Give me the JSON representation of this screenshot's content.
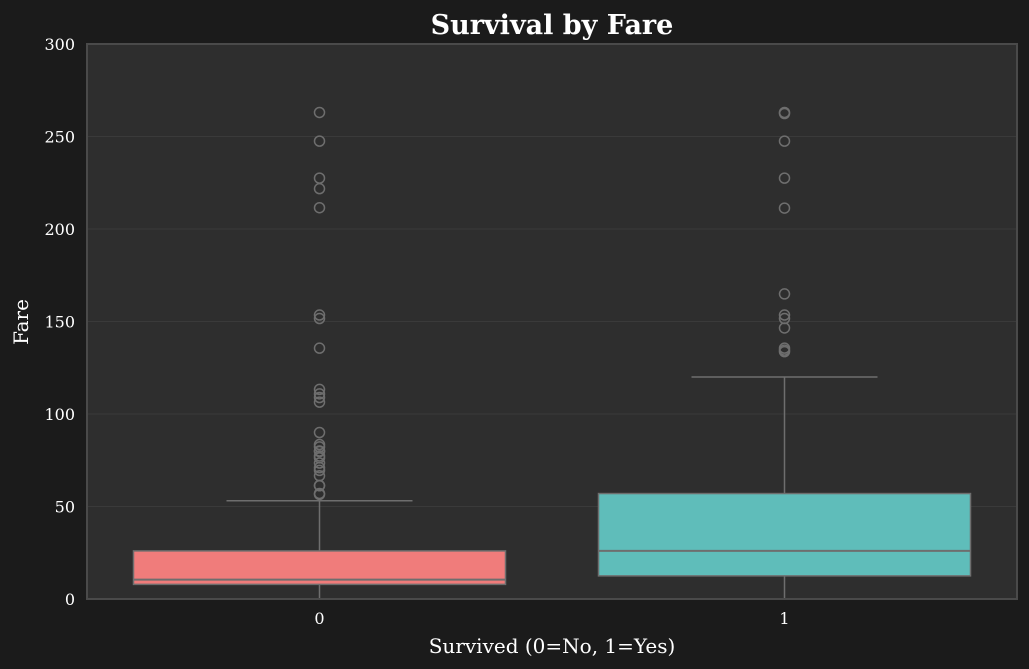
{
  "colors": {
    "background": "#1b1b1b",
    "plot_background": "#2e2e2e",
    "plot_border": "#4a4a4a",
    "grid": "#3a3a3a",
    "whisker": "#6e6e6e",
    "outlier": "#6e6e6e",
    "text": "#ffffff"
  },
  "chart_data": {
    "type": "box",
    "title": "Survival by Fare",
    "xlabel": "Survived (0=No, 1=Yes)",
    "ylabel": "Fare",
    "ylim": [
      0,
      300
    ],
    "yticks": [
      0,
      50,
      100,
      150,
      200,
      250,
      300
    ],
    "grid": true,
    "categories": [
      "0",
      "1"
    ],
    "boxes": [
      {
        "category": "0",
        "color": "#f07c7b",
        "min": 0,
        "q1": 7.9,
        "median": 10.5,
        "q3": 26,
        "max": 53.1,
        "outliers": [
          56.5,
          57,
          61.2,
          61.4,
          66.6,
          69.5,
          71,
          73.5,
          76.3,
          77.3,
          79.7,
          80,
          82.2,
          83.5,
          90,
          106.4,
          108.9,
          110.9,
          113.3,
          135.6,
          151.6,
          153.5,
          211.5,
          221.8,
          227.5,
          247.5,
          263
        ]
      },
      {
        "category": "1",
        "color": "#5fbdba",
        "min": 0,
        "q1": 12.5,
        "median": 26,
        "q3": 57,
        "max": 120,
        "outliers": [
          133.7,
          134.5,
          135.6,
          146.5,
          151.6,
          153.5,
          164.9,
          211.3,
          227.5,
          247.5,
          262.4,
          263
        ]
      }
    ]
  }
}
